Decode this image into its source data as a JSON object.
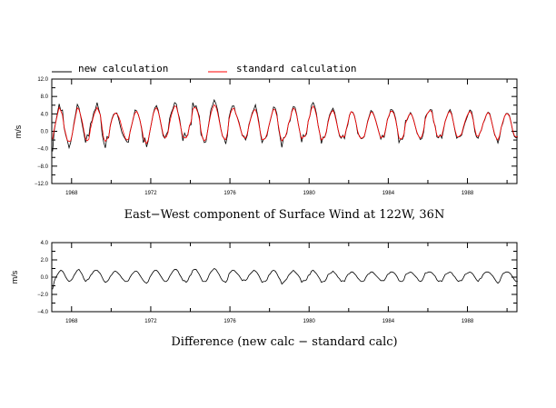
{
  "chart_data": [
    {
      "type": "line",
      "title": "East−West component of Surface Wind at 122W, 36N",
      "ylabel": "m/s",
      "xlim": [
        1967,
        1990.5
      ],
      "ylim": [
        -12,
        12
      ],
      "x_ticks": [
        1968,
        1972,
        1976,
        1980,
        1984,
        1988
      ],
      "x_tick_labels": [
        "1968",
        "1972",
        "1976",
        "1980",
        "1984",
        "1988"
      ],
      "y_ticks": [
        -12,
        -8,
        -4,
        0,
        4,
        8,
        12
      ],
      "y_tick_labels": [
        "−12.0",
        "−8.0",
        "−4.0",
        "0.0",
        "4.0",
        "8.0",
        "12.0"
      ],
      "legend": [
        {
          "label": "new calculation",
          "color": "#000000"
        },
        {
          "label": "standard calculation",
          "color": "#ff0000"
        }
      ],
      "legend_placement": "top",
      "series": [
        {
          "name": "new calculation",
          "color": "#000000",
          "x_start": 1967.04,
          "x_step": 0.08333,
          "values": [
            -4.6,
            0.2,
            2.3,
            4.3,
            6.3,
            4.7,
            4.9,
            0.8,
            -0.9,
            -2.2,
            -3.8,
            -2.5,
            -0.5,
            2.0,
            4.0,
            6.2,
            5.4,
            3.5,
            1.5,
            -0.5,
            -2.6,
            -0.8,
            -1.1,
            1.8,
            2.5,
            4.4,
            5.1,
            6.6,
            5.0,
            3.7,
            -0.5,
            -2.5,
            -3.8,
            -1.2,
            -1.5,
            1.4,
            2.9,
            3.9,
            4.1,
            4.2,
            2.9,
            1.3,
            -0.2,
            -1.1,
            -1.7,
            -2.4,
            -2.5,
            0.0,
            1.5,
            3.0,
            4.9,
            4.7,
            3.8,
            2.5,
            0.5,
            -2.6,
            -1.6,
            -3.6,
            -2.2,
            0.0,
            2.0,
            4.0,
            5.4,
            5.9,
            4.9,
            3.0,
            1.0,
            -1.0,
            -1.6,
            -0.7,
            0.0,
            3.0,
            4.3,
            5.2,
            6.6,
            6.3,
            4.3,
            2.9,
            0.3,
            -2.2,
            -0.4,
            -1.2,
            -0.9,
            1.3,
            1.5,
            6.6,
            5.5,
            5.9,
            4.6,
            3.4,
            -0.8,
            -1.4,
            -2.6,
            -2.4,
            0.1,
            2.5,
            5.0,
            6.0,
            7.2,
            6.4,
            5.0,
            2.8,
            0.6,
            -1.1,
            -1.6,
            -2.9,
            -1.0,
            3.2,
            4.8,
            5.8,
            5.8,
            4.1,
            3.2,
            2.1,
            0.5,
            -1.0,
            -1.1,
            -2.0,
            -1.0,
            1.5,
            2.8,
            4.2,
            5.0,
            6.1,
            4.3,
            2.3,
            -0.5,
            -2.6,
            -1.8,
            -1.6,
            -1.0,
            1.0,
            2.5,
            4.0,
            5.6,
            5.3,
            4.0,
            0.7,
            -1.4,
            -3.7,
            -1.5,
            -1.3,
            -0.5,
            1.8,
            2.4,
            4.6,
            5.7,
            5.5,
            3.9,
            1.6,
            -0.3,
            -2.5,
            -0.8,
            -1.2,
            -0.6,
            2.4,
            3.5,
            6.0,
            6.6,
            5.7,
            4.0,
            1.3,
            -0.5,
            -2.8,
            -1.3,
            -1.4,
            -0.2,
            2.3,
            3.8,
            4.6,
            5.3,
            4.3,
            2.6,
            0.5,
            -1.1,
            -1.6,
            -0.9,
            -1.7,
            0.3,
            1.5,
            3.7,
            4.5,
            4.4,
            3.6,
            1.9,
            -0.5,
            -1.0,
            -1.7,
            -1.6,
            -1.2,
            0.4,
            2.3,
            3.5,
            4.8,
            4.5,
            3.6,
            2.4,
            1.0,
            -0.4,
            -1.8,
            -0.9,
            -1.4,
            0.5,
            2.8,
            3.5,
            5.0,
            4.9,
            4.3,
            2.9,
            0.6,
            -2.6,
            -1.7,
            -1.9,
            -1.0,
            2.5,
            2.6,
            3.6,
            4.3,
            3.6,
            2.5,
            1.0,
            -0.5,
            -1.1,
            -1.9,
            -1.6,
            -0.1,
            3.3,
            4.0,
            4.4,
            5.0,
            4.9,
            2.2,
            1.2,
            -1.3,
            -1.5,
            -0.8,
            -1.6,
            0.3,
            2.3,
            3.3,
            4.4,
            5.0,
            4.0,
            2.1,
            0.1,
            -1.6,
            -1.3,
            -1.2,
            -0.9,
            0.6,
            1.9,
            2.9,
            4.0,
            4.9,
            4.6,
            2.8,
            0.0,
            -1.3,
            -1.6,
            -0.4,
            0.3,
            1.8,
            2.6,
            3.8,
            4.4,
            4.1,
            2.6,
            0.9,
            -0.8,
            -1.5,
            -2.7,
            -1.4,
            0.9,
            1.9,
            3.4,
            4.1,
            4.1,
            3.6,
            2.0,
            0.0,
            -1.2,
            -1.5,
            -1.3
          ]
        },
        {
          "name": "standard calculation",
          "color": "#ff0000",
          "x_start": 1967.04,
          "x_step": 0.08333,
          "values": [
            -1.8,
            0.5,
            2.2,
            3.9,
            5.5,
            4.7,
            3.7,
            1.0,
            -0.6,
            -2.1,
            -2.3,
            -2.2,
            -0.5,
            1.6,
            3.6,
            5.4,
            5.0,
            3.7,
            2.2,
            0.1,
            -1.7,
            -2.2,
            -1.8,
            0.6,
            2.2,
            3.7,
            4.6,
            5.5,
            4.6,
            3.7,
            0.9,
            -1.6,
            -2.3,
            -1.8,
            -1.3,
            1.2,
            2.7,
            3.7,
            4.2,
            4.0,
            3.4,
            2.4,
            0.9,
            -0.3,
            -1.5,
            -2.0,
            -1.8,
            -0.2,
            1.4,
            3.2,
            4.2,
            4.6,
            3.8,
            2.5,
            0.8,
            -1.3,
            -2.3,
            -2.8,
            -2.0,
            0.0,
            1.9,
            3.9,
            5.0,
            5.4,
            4.6,
            3.1,
            1.2,
            -0.6,
            -1.5,
            -1.3,
            -0.3,
            2.0,
            3.7,
            4.9,
            5.8,
            5.7,
            4.3,
            2.3,
            0.4,
            -1.3,
            -1.5,
            -1.5,
            -0.7,
            1.3,
            2.2,
            5.0,
            5.5,
            5.3,
            4.4,
            2.8,
            0.1,
            -1.6,
            -2.2,
            -1.8,
            0.0,
            2.2,
            4.1,
            5.3,
            6.1,
            5.7,
            4.4,
            2.5,
            0.5,
            -1.0,
            -1.7,
            -1.9,
            -0.4,
            2.7,
            4.3,
            5.1,
            5.3,
            4.2,
            3.1,
            1.8,
            0.4,
            -0.8,
            -1.4,
            -1.6,
            -0.6,
            1.2,
            2.7,
            3.9,
            4.8,
            5.0,
            3.9,
            1.8,
            -0.3,
            -1.9,
            -1.9,
            -1.6,
            -0.6,
            1.0,
            2.6,
            4.1,
            5.1,
            4.9,
            3.5,
            1.1,
            -1.0,
            -2.2,
            -1.7,
            -1.3,
            -0.2,
            1.7,
            2.8,
            4.4,
            5.3,
            5.0,
            3.7,
            1.6,
            -0.3,
            -1.7,
            -1.2,
            -1.2,
            -0.2,
            2.3,
            3.6,
            5.2,
            5.8,
            5.1,
            3.6,
            1.4,
            -0.5,
            -2.0,
            -1.6,
            -1.3,
            0.0,
            2.0,
            3.5,
            4.4,
            4.8,
            3.9,
            2.3,
            0.6,
            -0.9,
            -1.4,
            -1.1,
            -1.3,
            0.4,
            1.9,
            3.6,
            4.5,
            4.3,
            3.5,
            1.9,
            0.0,
            -1.2,
            -1.6,
            -1.5,
            -1.1,
            0.4,
            2.1,
            3.3,
            4.4,
            4.3,
            3.5,
            2.3,
            0.9,
            -0.5,
            -1.5,
            -1.3,
            -1.0,
            0.6,
            2.6,
            3.7,
            4.6,
            4.6,
            4.0,
            2.6,
            0.6,
            -1.5,
            -1.8,
            -1.6,
            -0.7,
            1.8,
            2.8,
            3.7,
            4.1,
            3.6,
            2.4,
            1.0,
            -0.3,
            -1.2,
            -1.6,
            -1.1,
            0.4,
            2.8,
            3.9,
            4.5,
            4.8,
            4.4,
            2.5,
            0.9,
            -0.9,
            -1.3,
            -1.0,
            -1.0,
            0.6,
            2.2,
            3.4,
            4.3,
            4.6,
            3.8,
            2.1,
            0.3,
            -1.1,
            -1.3,
            -1.0,
            -0.6,
            0.9,
            2.2,
            3.3,
            4.1,
            4.6,
            4.1,
            2.6,
            0.5,
            -1.0,
            -1.2,
            -0.5,
            0.4,
            1.8,
            2.8,
            3.8,
            4.3,
            3.9,
            2.5,
            0.9,
            -0.6,
            -1.6,
            -2.0,
            -1.0,
            0.9,
            2.2,
            3.4,
            4.0,
            4.0,
            3.4,
            1.9,
            0.2,
            -1.0,
            -1.3,
            -1.2
          ]
        }
      ]
    },
    {
      "type": "line",
      "title": "Difference (new calc − standard calc)",
      "ylabel": "m/s",
      "xlim": [
        1967,
        1990.5
      ],
      "ylim": [
        -4,
        4
      ],
      "x_ticks": [
        1968,
        1972,
        1976,
        1980,
        1984,
        1988
      ],
      "x_tick_labels": [
        "1968",
        "1972",
        "1976",
        "1980",
        "1984",
        "1988"
      ],
      "y_ticks": [
        -4,
        -2,
        0,
        2,
        4
      ],
      "y_tick_labels": [
        "−4.0",
        "−2.0",
        "0.0",
        "2.0",
        "4.0"
      ],
      "series": [
        {
          "color": "#000000",
          "x_start": 1967.04,
          "x_step": 0.08333,
          "values": [
            -1.4,
            -0.5,
            0.0,
            0.3,
            0.6,
            0.8,
            0.7,
            0.4,
            0.0,
            -0.3,
            -0.5,
            -0.4,
            -0.2,
            0.2,
            0.5,
            0.8,
            0.9,
            0.6,
            0.3,
            -0.2,
            -0.5,
            -0.3,
            -0.2,
            0.2,
            0.4,
            0.7,
            0.8,
            0.8,
            0.6,
            0.4,
            0.0,
            -0.4,
            -0.6,
            -0.5,
            -0.3,
            0.1,
            0.3,
            0.6,
            0.7,
            0.6,
            0.4,
            0.2,
            -0.1,
            -0.3,
            -0.5,
            -0.5,
            -0.4,
            0.0,
            0.3,
            0.5,
            0.7,
            0.7,
            0.5,
            0.2,
            -0.1,
            -0.4,
            -0.6,
            -0.7,
            -0.5,
            0.0,
            0.3,
            0.6,
            0.8,
            0.8,
            0.6,
            0.3,
            0.0,
            -0.3,
            -0.5,
            -0.5,
            -0.3,
            0.1,
            0.4,
            0.7,
            0.9,
            0.9,
            0.7,
            0.3,
            0.0,
            -0.4,
            -0.4,
            -0.6,
            -0.4,
            0.1,
            0.3,
            0.8,
            0.9,
            0.9,
            0.6,
            0.3,
            -0.1,
            -0.5,
            -0.5,
            -0.5,
            -0.2,
            0.3,
            0.6,
            0.8,
            1.0,
            0.9,
            0.6,
            0.3,
            -0.1,
            -0.4,
            -0.5,
            -0.6,
            -0.3,
            0.4,
            0.6,
            0.8,
            0.8,
            0.6,
            0.4,
            0.2,
            -0.1,
            -0.4,
            -0.3,
            -0.4,
            -0.2,
            0.2,
            0.4,
            0.6,
            0.8,
            0.7,
            0.5,
            0.2,
            -0.2,
            -0.6,
            -0.5,
            -0.5,
            -0.3,
            0.2,
            0.4,
            0.7,
            0.8,
            0.7,
            0.4,
            0.0,
            -0.3,
            -0.8,
            -0.6,
            -0.4,
            -0.2,
            0.2,
            0.4,
            0.6,
            0.8,
            0.6,
            0.4,
            0.2,
            -0.1,
            -0.6,
            -0.4,
            -0.4,
            -0.3,
            0.2,
            0.3,
            0.7,
            0.8,
            0.6,
            0.4,
            0.1,
            -0.2,
            -0.6,
            -0.5,
            -0.5,
            -0.2,
            0.3,
            0.4,
            0.5,
            0.7,
            0.5,
            0.3,
            0.0,
            -0.2,
            -0.5,
            -0.4,
            -0.5,
            0.0,
            0.3,
            0.4,
            0.6,
            0.6,
            0.4,
            0.2,
            -0.1,
            -0.3,
            -0.5,
            -0.5,
            -0.4,
            0.0,
            0.3,
            0.4,
            0.6,
            0.6,
            0.4,
            0.2,
            0.0,
            -0.2,
            -0.4,
            -0.4,
            -0.4,
            -0.1,
            0.3,
            0.4,
            0.6,
            0.6,
            0.5,
            0.3,
            0.0,
            -0.4,
            -0.5,
            -0.5,
            -0.3,
            0.3,
            0.4,
            0.5,
            0.6,
            0.5,
            0.3,
            0.1,
            -0.1,
            -0.4,
            -0.5,
            -0.4,
            0.0,
            0.5,
            0.5,
            0.6,
            0.6,
            0.5,
            0.3,
            0.1,
            -0.3,
            -0.5,
            -0.4,
            -0.5,
            -0.1,
            0.3,
            0.4,
            0.5,
            0.6,
            0.5,
            0.2,
            0.0,
            -0.3,
            -0.5,
            -0.4,
            -0.4,
            -0.1,
            0.3,
            0.4,
            0.5,
            0.6,
            0.5,
            0.3,
            0.0,
            -0.3,
            -0.5,
            -0.2,
            -0.1,
            0.3,
            0.5,
            0.6,
            0.6,
            0.5,
            0.3,
            0.1,
            -0.2,
            -0.5,
            -0.7,
            -0.5,
            0.0,
            0.4,
            0.5,
            0.6,
            0.6,
            0.5,
            0.3,
            0.0,
            -0.3,
            -0.5,
            -0.5
          ]
        }
      ]
    }
  ]
}
